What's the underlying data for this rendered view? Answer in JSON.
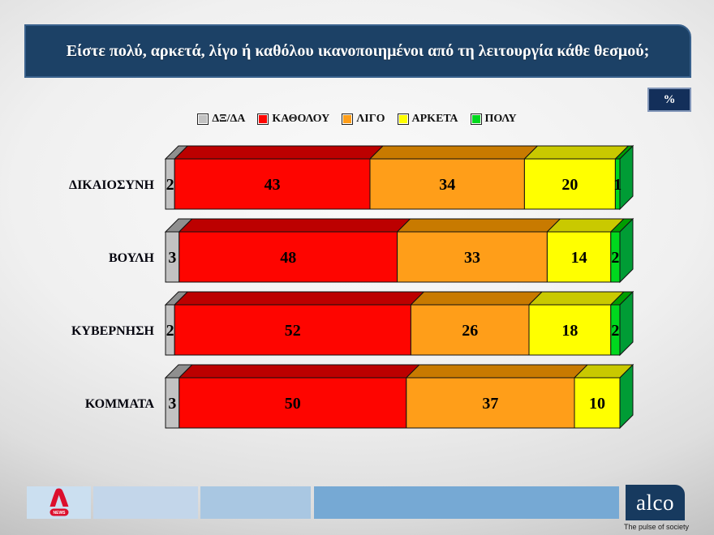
{
  "slide": {
    "title": "Είστε πολύ, αρκετά, λίγο ή καθόλου ικανοποιημένοι από τη λειτουργία κάθε θεσμού;",
    "unit_badge": "%"
  },
  "chart_data": {
    "type": "bar",
    "orientation": "horizontal",
    "stacked": true,
    "value_unit": "percent",
    "xlim": [
      0,
      100
    ],
    "grid": false,
    "legend_position": "top-center",
    "value_labels": "inside",
    "categories": [
      "ΔΙΚΑΙΟΣΥΝΗ",
      "ΒΟΥΛΗ",
      "ΚΥΒΕΡΝΗΣΗ",
      "ΚΟΜΜΑΤΑ"
    ],
    "series": [
      {
        "name": "ΔΞ/ΔΑ",
        "color": "#C2C2C2",
        "top_color": "#8F8F8F",
        "values": [
          2,
          3,
          2,
          3
        ]
      },
      {
        "name": "ΚΑΘΟΛΟΥ",
        "color": "#FE0500",
        "top_color": "#BC0000",
        "values": [
          43,
          48,
          52,
          50
        ]
      },
      {
        "name": "ΛΙΓΟ",
        "color": "#FF9E19",
        "top_color": "#C87A00",
        "values": [
          34,
          33,
          26,
          37
        ]
      },
      {
        "name": "ΑΡΚΕΤΑ",
        "color": "#FFFF00",
        "top_color": "#C9C900",
        "values": [
          20,
          14,
          18,
          10
        ]
      },
      {
        "name": "ΠΟΛΥ",
        "color": "#00D81E",
        "top_color": "#009E00",
        "values": [
          1,
          2,
          2,
          0
        ]
      }
    ],
    "end_cap_color": "#009C35"
  },
  "footer": {
    "alpha_logo": {
      "letter": "A",
      "news_label": "NEWS"
    },
    "alco_name": "alco",
    "alco_tagline": "The pulse of society"
  },
  "colors": {
    "title_bg": "#1C4166",
    "title_border": "#3A628D",
    "badge_bg": "#132F5A",
    "badge_border": "#8296B8",
    "alpha_red": "#DC0F2D",
    "alco_navy": "#173A5F",
    "strip1": "#CBDFF0",
    "strip2": "#C3D6EA",
    "strip3": "#A9C7E2",
    "strip4": "#76A9D4"
  }
}
